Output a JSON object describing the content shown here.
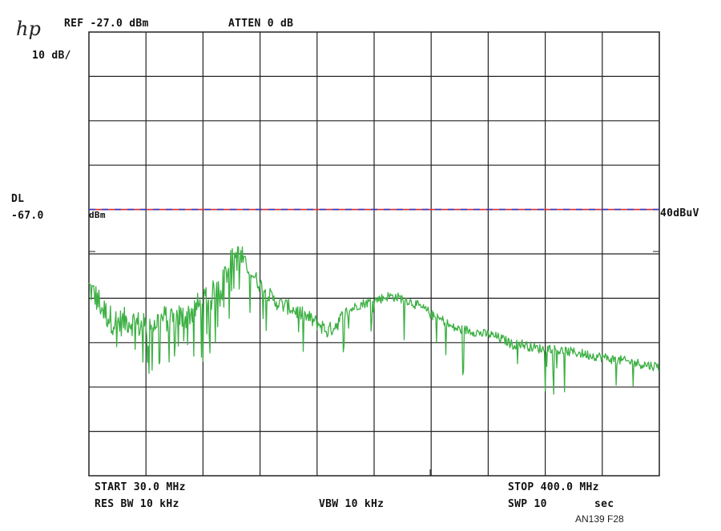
{
  "instrument": {
    "logo_text": "hp",
    "ref_level": "REF -27.0 dBm",
    "attenuation": "ATTEN 0 dB",
    "scale": "10 dB/",
    "display_line_label": "DL",
    "display_line_value": "-67.0",
    "display_line_unit": "dBm",
    "limit_label": "40dBuV",
    "start": "START 30.0 MHz",
    "res_bw": "RES BW 10 kHz",
    "vbw": "VBW 10 kHz",
    "stop": "STOP 400.0 MHz",
    "sweep": "SWP 10",
    "sweep_unit": "sec",
    "figure_id": "AN139 F28"
  },
  "colors": {
    "trace": "#3cb043",
    "grid": "#222222",
    "limit_red": "#e03030",
    "limit_blue": "#2b3cc8"
  },
  "chart_data": {
    "type": "line",
    "xlabel": "",
    "ylabel": "",
    "xlim": [
      30,
      400
    ],
    "ylim": [
      -127,
      -27
    ],
    "grid": true,
    "x_divisions": 10,
    "y_divisions": 10,
    "limit_line_dbm": -67,
    "series": [
      {
        "points": [
          [
            30,
            -84.5
          ],
          [
            35,
            -87
          ],
          [
            40,
            -90
          ],
          [
            45,
            -92
          ],
          [
            50,
            -92.5
          ],
          [
            55,
            -92
          ],
          [
            60,
            -92.5
          ],
          [
            65,
            -93.5
          ],
          [
            70,
            -93
          ],
          [
            75,
            -92
          ],
          [
            80,
            -91.5
          ],
          [
            85,
            -91
          ],
          [
            90,
            -91.5
          ],
          [
            95,
            -90.5
          ],
          [
            100,
            -89
          ],
          [
            105,
            -88
          ],
          [
            110,
            -86.5
          ],
          [
            115,
            -83
          ],
          [
            120,
            -80
          ],
          [
            125,
            -77.5
          ],
          [
            130,
            -78.5
          ],
          [
            135,
            -81
          ],
          [
            140,
            -83.5
          ],
          [
            145,
            -85.5
          ],
          [
            150,
            -87.5
          ],
          [
            155,
            -88.5
          ],
          [
            160,
            -89
          ],
          [
            165,
            -90
          ],
          [
            170,
            -91
          ],
          [
            175,
            -92
          ],
          [
            180,
            -93
          ],
          [
            185,
            -94.5
          ],
          [
            190,
            -93
          ],
          [
            195,
            -91
          ],
          [
            200,
            -89.5
          ],
          [
            205,
            -88.5
          ],
          [
            210,
            -88
          ],
          [
            215,
            -87.5
          ],
          [
            220,
            -87
          ],
          [
            225,
            -86.5
          ],
          [
            230,
            -86.8
          ],
          [
            235,
            -87.2
          ],
          [
            240,
            -88
          ],
          [
            245,
            -89
          ],
          [
            250,
            -90
          ],
          [
            255,
            -91.5
          ],
          [
            260,
            -92
          ],
          [
            265,
            -93.5
          ],
          [
            270,
            -94
          ],
          [
            275,
            -94.2
          ],
          [
            280,
            -94.5
          ],
          [
            285,
            -95
          ],
          [
            290,
            -95.2
          ],
          [
            295,
            -95.8
          ],
          [
            300,
            -96.5
          ],
          [
            305,
            -97.5
          ],
          [
            310,
            -97.2
          ],
          [
            315,
            -97.8
          ],
          [
            320,
            -98.2
          ],
          [
            325,
            -98.5
          ],
          [
            330,
            -98.2
          ],
          [
            335,
            -98.8
          ],
          [
            340,
            -99
          ],
          [
            345,
            -99.2
          ],
          [
            350,
            -99.5
          ],
          [
            355,
            -99.8
          ],
          [
            360,
            -100.1
          ],
          [
            365,
            -100.4
          ],
          [
            370,
            -100.8
          ],
          [
            375,
            -101
          ],
          [
            380,
            -101.3
          ],
          [
            385,
            -101.6
          ],
          [
            390,
            -101.9
          ],
          [
            395,
            -102.2
          ],
          [
            400,
            -102.4
          ]
        ]
      }
    ]
  }
}
